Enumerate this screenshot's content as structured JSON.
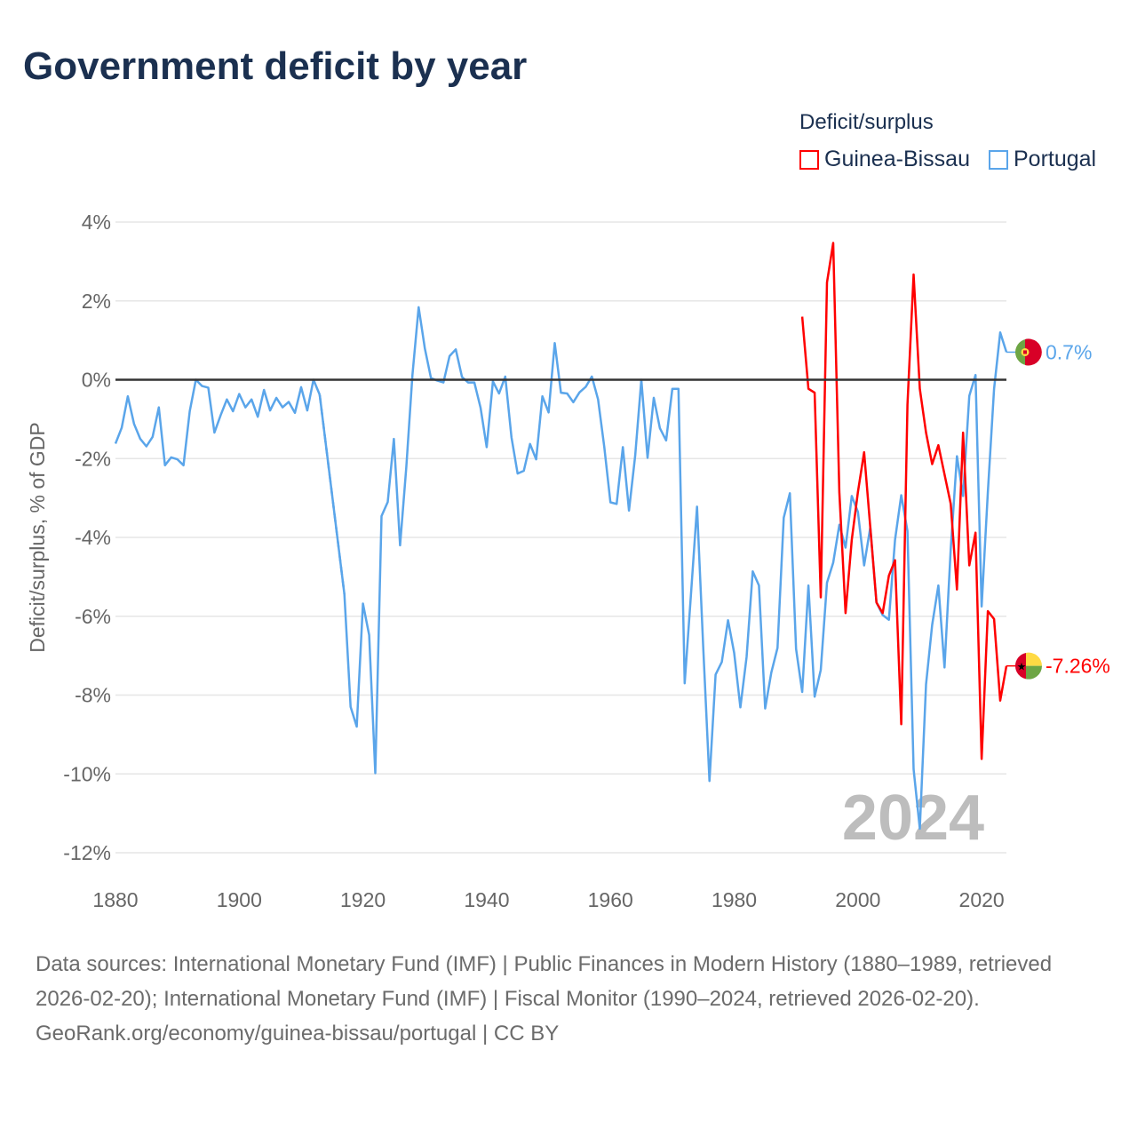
{
  "title": "Government deficit by year",
  "legend": {
    "title": "Deficit/surplus",
    "items": [
      {
        "name": "Guinea-Bissau",
        "color": "#ff0000"
      },
      {
        "name": "Portugal",
        "color": "#5aa5ea"
      }
    ]
  },
  "year_watermark": "2024",
  "end_labels": {
    "portugal": "0.7%",
    "guinea_bissau": "-7.26%"
  },
  "footer": {
    "sources": "Data sources: International Monetary Fund (IMF) | Public Finances in Modern History (1880–1989, retrieved 2026-02-20); International Monetary Fund (IMF) | Fiscal Monitor (1990–2024, retrieved 2026-02-20).",
    "credit": "GeoRank.org/economy/guinea-bissau/portugal | CC BY"
  },
  "chart_data": {
    "type": "line",
    "title": "Government deficit by year",
    "xlabel": "",
    "ylabel": "Deficit/surplus, % of GDP",
    "xlim": [
      1880,
      2024
    ],
    "ylim": [
      -12,
      4
    ],
    "xticks": [
      1880,
      1900,
      1920,
      1940,
      1960,
      1980,
      2000,
      2020
    ],
    "yticks": [
      4,
      2,
      0,
      -2,
      -4,
      -6,
      -8,
      -10,
      -12
    ],
    "ytick_labels": [
      "4%",
      "2%",
      "0%",
      "-2%",
      "-4%",
      "-6%",
      "-8%",
      "-10%",
      "-12%"
    ],
    "grid": true,
    "legend_position": "top-right",
    "series": [
      {
        "name": "Portugal",
        "color": "#5aa5ea",
        "start_year": 1880,
        "values": [
          -1.62,
          -1.22,
          -0.42,
          -1.12,
          -1.5,
          -1.69,
          -1.45,
          -0.7,
          -2.17,
          -1.97,
          -2.02,
          -2.17,
          -0.8,
          0,
          -0.16,
          -0.2,
          -1.34,
          -0.9,
          -0.5,
          -0.8,
          -0.36,
          -0.7,
          -0.5,
          -0.94,
          -0.26,
          -0.78,
          -0.46,
          -0.7,
          -0.56,
          -0.84,
          -0.19,
          -0.78,
          0,
          -0.38,
          null,
          null,
          null,
          -5.44,
          -8.3,
          -8.8,
          -5.68,
          -6.48,
          -9.98,
          -3.46,
          -3.1,
          -1.5,
          -4.2,
          -2.22,
          0.12,
          1.84,
          0.79,
          0.04,
          -0.02,
          -0.07,
          0.6,
          0.77,
          0.07,
          -0.07,
          -0.07,
          -0.71,
          -1.71,
          -0.04,
          -0.35,
          0.08,
          -1.46,
          -2.38,
          -2.31,
          -1.63,
          -2.02,
          -0.42,
          -0.83,
          0.93,
          -0.33,
          -0.35,
          -0.57,
          -0.32,
          -0.18,
          0.08,
          -0.5,
          -1.71,
          -3.11,
          -3.15,
          -1.71,
          -3.32,
          -1.92,
          0,
          -1.98,
          -0.46,
          -1.23,
          -1.54,
          -0.23,
          -0.23,
          -7.7,
          -5.47,
          -3.22,
          -6.8,
          -10.18,
          -7.48,
          -7.16,
          -6.1,
          -6.93,
          -8.31,
          -7.03,
          -4.86,
          -5.22,
          -8.34,
          -7.43,
          -6.8,
          -3.5,
          -2.88,
          -6.83,
          -7.92,
          -5.22,
          -8.04,
          -7.36,
          -5.15,
          -4.64,
          -3.68,
          -4.26,
          -2.95,
          -3.35,
          -4.71,
          -3.74,
          -5.65,
          -5.97,
          -6.09,
          -4.06,
          -2.93,
          -3.84,
          -9.88,
          -11.39,
          -7.73,
          -6.22,
          -5.22,
          -7.3,
          -4.3,
          -1.94,
          -2.95,
          -0.41,
          0.12,
          -5.75,
          -2.85,
          -0.23,
          1.2,
          0.7
        ]
      },
      {
        "name": "Guinea-Bissau",
        "color": "#ff0000",
        "start_year": 1991,
        "values": [
          1.6,
          -0.23,
          -0.33,
          -5.52,
          2.47,
          3.47,
          -2.85,
          -5.92,
          -4.06,
          -2.85,
          -1.84,
          -3.76,
          -5.65,
          -5.92,
          -4.97,
          -4.58,
          -8.74,
          -0.63,
          2.67,
          -0.23,
          -1.34,
          -2.14,
          -1.66,
          -2.4,
          -3.15,
          -5.32,
          -1.34,
          -4.71,
          -3.88,
          -9.62,
          -5.87,
          -6.07,
          -8.14,
          -7.26
        ]
      }
    ]
  }
}
